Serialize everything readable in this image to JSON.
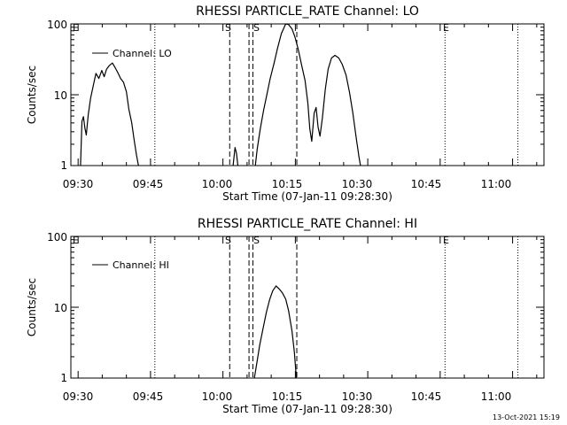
{
  "footer_timestamp": "13-Oct-2021 15:19",
  "chart_data": [
    {
      "type": "line",
      "title": "RHESSI PARTICLE_RATE Channel: LO",
      "xlabel": "Start Time (07-Jan-11 09:28:30)",
      "ylabel": "Counts/sec",
      "x_unit": "minutes after 09:28:30",
      "xlim": [
        0,
        98
      ],
      "ylim": [
        1,
        100
      ],
      "y_scale": "log",
      "x_ticks": [
        {
          "x": 1.5,
          "label": "09:30"
        },
        {
          "x": 16.5,
          "label": "09:45"
        },
        {
          "x": 31.5,
          "label": "10:00"
        },
        {
          "x": 46.5,
          "label": "10:15"
        },
        {
          "x": 61.5,
          "label": "10:30"
        },
        {
          "x": 76.5,
          "label": "10:45"
        },
        {
          "x": 91.5,
          "label": "11:00"
        }
      ],
      "y_ticks": [
        {
          "y": 1,
          "label": "1"
        },
        {
          "y": 10,
          "label": "10"
        },
        {
          "y": 100,
          "label": "100"
        }
      ],
      "legend": {
        "label": "Channel: LO",
        "placement": "top-left"
      },
      "annotations": [
        {
          "text": "E",
          "x": 0.3
        },
        {
          "text": "S",
          "x": 34.1
        },
        {
          "text": "S",
          "x": 38.9
        },
        {
          "text": "E",
          "x": 77.9
        }
      ],
      "vlines": [
        {
          "x": 17.4,
          "style": "dotted"
        },
        {
          "x": 32.9,
          "style": "dashed"
        },
        {
          "x": 36.9,
          "style": "dashed"
        },
        {
          "x": 37.7,
          "style": "dashed"
        },
        {
          "x": 46.8,
          "style": "dashed"
        },
        {
          "x": 77.5,
          "style": "dotted"
        },
        {
          "x": 92.6,
          "style": "dotted"
        }
      ],
      "series": [
        {
          "segments": [
            [
              [
                2.0,
                1
              ],
              [
                2.3,
                4.2
              ],
              [
                2.6,
                4.9
              ],
              [
                2.9,
                3.4
              ],
              [
                3.2,
                2.7
              ],
              [
                3.6,
                5.2
              ],
              [
                4.1,
                9
              ],
              [
                4.7,
                14
              ],
              [
                5.2,
                20
              ],
              [
                5.8,
                17
              ],
              [
                6.4,
                22
              ],
              [
                6.9,
                18
              ],
              [
                7.4,
                23
              ],
              [
                8.0,
                26
              ],
              [
                8.6,
                28
              ],
              [
                9.2,
                24
              ],
              [
                9.8,
                20
              ],
              [
                10.3,
                17
              ],
              [
                10.9,
                15
              ],
              [
                11.5,
                11
              ],
              [
                12.0,
                6.3
              ],
              [
                12.6,
                4.0
              ],
              [
                13.1,
                2.3
              ],
              [
                13.6,
                1.4
              ],
              [
                14.0,
                1
              ]
            ],
            [
              [
                33.6,
                1
              ],
              [
                34.0,
                1.8
              ],
              [
                34.3,
                1.5
              ],
              [
                34.6,
                1
              ]
            ],
            [
              [
                38.2,
                1
              ],
              [
                38.6,
                1.7
              ],
              [
                39.2,
                3.2
              ],
              [
                39.9,
                5.9
              ],
              [
                40.6,
                10
              ],
              [
                41.3,
                17
              ],
              [
                42.1,
                28
              ],
              [
                42.8,
                45
              ],
              [
                43.6,
                73
              ],
              [
                44.5,
                100
              ],
              [
                45.1,
                98
              ],
              [
                45.8,
                85
              ],
              [
                46.4,
                66
              ],
              [
                47.1,
                44
              ],
              [
                47.8,
                26
              ],
              [
                48.5,
                16
              ],
              [
                49.1,
                7.6
              ],
              [
                49.5,
                3.3
              ],
              [
                49.9,
                2.2
              ],
              [
                50.4,
                5.5
              ],
              [
                50.8,
                6.6
              ],
              [
                51.2,
                3.5
              ],
              [
                51.6,
                2.6
              ],
              [
                52.1,
                4.7
              ],
              [
                52.7,
                12
              ],
              [
                53.3,
                23
              ],
              [
                54.0,
                33
              ],
              [
                54.7,
                36
              ],
              [
                55.5,
                33
              ],
              [
                56.2,
                27
              ],
              [
                57.0,
                19
              ],
              [
                57.7,
                11
              ],
              [
                58.4,
                5.6
              ],
              [
                59.1,
                2.5
              ],
              [
                59.7,
                1.3
              ],
              [
                60.0,
                1
              ]
            ]
          ]
        }
      ]
    },
    {
      "type": "line",
      "title": "RHESSI PARTICLE_RATE Channel: HI",
      "xlabel": "Start Time (07-Jan-11 09:28:30)",
      "ylabel": "Counts/sec",
      "x_unit": "minutes after 09:28:30",
      "xlim": [
        0,
        98
      ],
      "ylim": [
        1,
        100
      ],
      "y_scale": "log",
      "x_ticks": [
        {
          "x": 1.5,
          "label": "09:30"
        },
        {
          "x": 16.5,
          "label": "09:45"
        },
        {
          "x": 31.5,
          "label": "10:00"
        },
        {
          "x": 46.5,
          "label": "10:15"
        },
        {
          "x": 61.5,
          "label": "10:30"
        },
        {
          "x": 76.5,
          "label": "10:45"
        },
        {
          "x": 91.5,
          "label": "11:00"
        }
      ],
      "y_ticks": [
        {
          "y": 1,
          "label": "1"
        },
        {
          "y": 10,
          "label": "10"
        },
        {
          "y": 100,
          "label": "100"
        }
      ],
      "legend": {
        "label": "Channel: HI",
        "placement": "top-left"
      },
      "annotations": [
        {
          "text": "E",
          "x": 0.3
        },
        {
          "text": "S",
          "x": 34.1
        },
        {
          "text": "S",
          "x": 38.9
        },
        {
          "text": "E",
          "x": 77.9
        }
      ],
      "vlines": [
        {
          "x": 17.4,
          "style": "dotted"
        },
        {
          "x": 32.9,
          "style": "dashed"
        },
        {
          "x": 36.9,
          "style": "dashed"
        },
        {
          "x": 37.7,
          "style": "dashed"
        },
        {
          "x": 46.8,
          "style": "dashed"
        },
        {
          "x": 77.5,
          "style": "dotted"
        },
        {
          "x": 92.6,
          "style": "dotted"
        }
      ],
      "series": [
        {
          "segments": [
            [
              [
                38.0,
                1
              ],
              [
                38.5,
                1.6
              ],
              [
                39.1,
                2.9
              ],
              [
                39.8,
                5.0
              ],
              [
                40.5,
                8.5
              ],
              [
                41.2,
                13
              ],
              [
                41.8,
                17
              ],
              [
                42.5,
                20
              ],
              [
                43.2,
                18
              ],
              [
                43.8,
                16
              ],
              [
                44.5,
                13
              ],
              [
                45.1,
                9
              ],
              [
                45.8,
                4.6
              ],
              [
                46.3,
                2.3
              ],
              [
                46.7,
                1
              ]
            ]
          ]
        }
      ]
    }
  ]
}
